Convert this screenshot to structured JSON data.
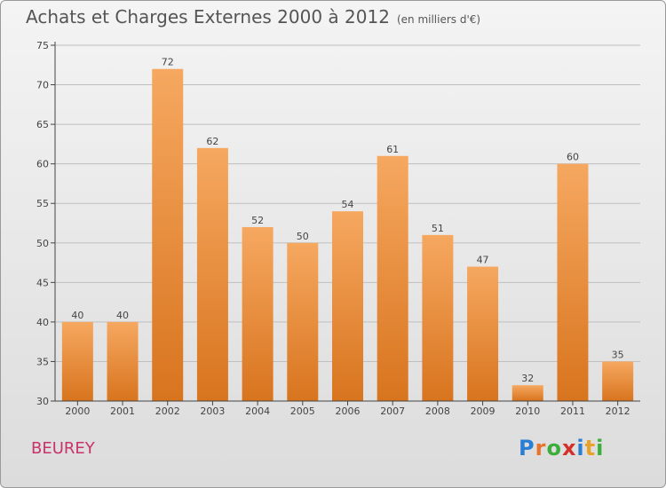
{
  "title": {
    "main": "Achats et Charges Externes 2000 à 2012",
    "unit": "(en milliers d'€)"
  },
  "commune": "BEUREY",
  "logo": {
    "letters": [
      "P",
      "r",
      "o",
      "x",
      "i",
      "t",
      "i"
    ],
    "colors": [
      "#2a7fd4",
      "#e8732a",
      "#3cae3c",
      "#d4302a",
      "#2a7fd4",
      "#e8a22a",
      "#3cae3c"
    ]
  },
  "colors": {
    "bar_top": "#f6a860",
    "bar_bottom": "#d8741e",
    "grid": "#bfbfbf",
    "axis": "#444444"
  },
  "chart_data": {
    "type": "bar",
    "title": "Achats et Charges Externes 2000 à 2012",
    "subtitle": "(en milliers d'€)",
    "categories": [
      "2000",
      "2001",
      "2002",
      "2003",
      "2004",
      "2005",
      "2006",
      "2007",
      "2008",
      "2009",
      "2010",
      "2011",
      "2012"
    ],
    "values": [
      40,
      40,
      72,
      62,
      52,
      50,
      54,
      61,
      51,
      47,
      32,
      60,
      35
    ],
    "ylim": [
      30,
      75
    ],
    "yticks": [
      30,
      35,
      40,
      45,
      50,
      55,
      60,
      65,
      70,
      75
    ],
    "grid": true
  }
}
